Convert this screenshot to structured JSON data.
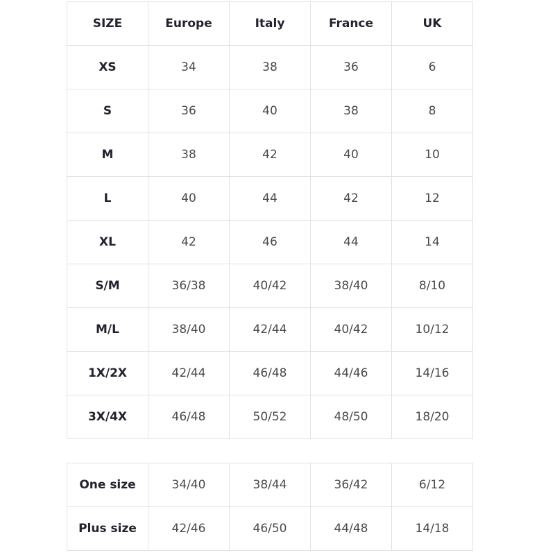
{
  "headers": [
    "SIZE",
    "Europe",
    "Italy",
    "France",
    "UK"
  ],
  "rows": [
    [
      "XS",
      "34",
      "38",
      "36",
      "6"
    ],
    [
      "S",
      "36",
      "40",
      "38",
      "8"
    ],
    [
      "M",
      "38",
      "42",
      "40",
      "10"
    ],
    [
      "L",
      "40",
      "44",
      "42",
      "12"
    ],
    [
      "XL",
      "42",
      "46",
      "44",
      "14"
    ],
    [
      "S/M",
      "36/38",
      "40/42",
      "38/40",
      "8/10"
    ],
    [
      "M/L",
      "38/40",
      "42/44",
      "40/42",
      "10/12"
    ],
    [
      "1X/2X",
      "42/44",
      "46/48",
      "44/46",
      "14/16"
    ],
    [
      "3X/4X",
      "46/48",
      "50/52",
      "48/50",
      "18/20"
    ]
  ],
  "extra_rows": [
    [
      "One size",
      "34/40",
      "38/44",
      "36/42",
      "6/12"
    ],
    [
      "Plus size",
      "42/46",
      "46/50",
      "44/48",
      "14/18"
    ]
  ]
}
